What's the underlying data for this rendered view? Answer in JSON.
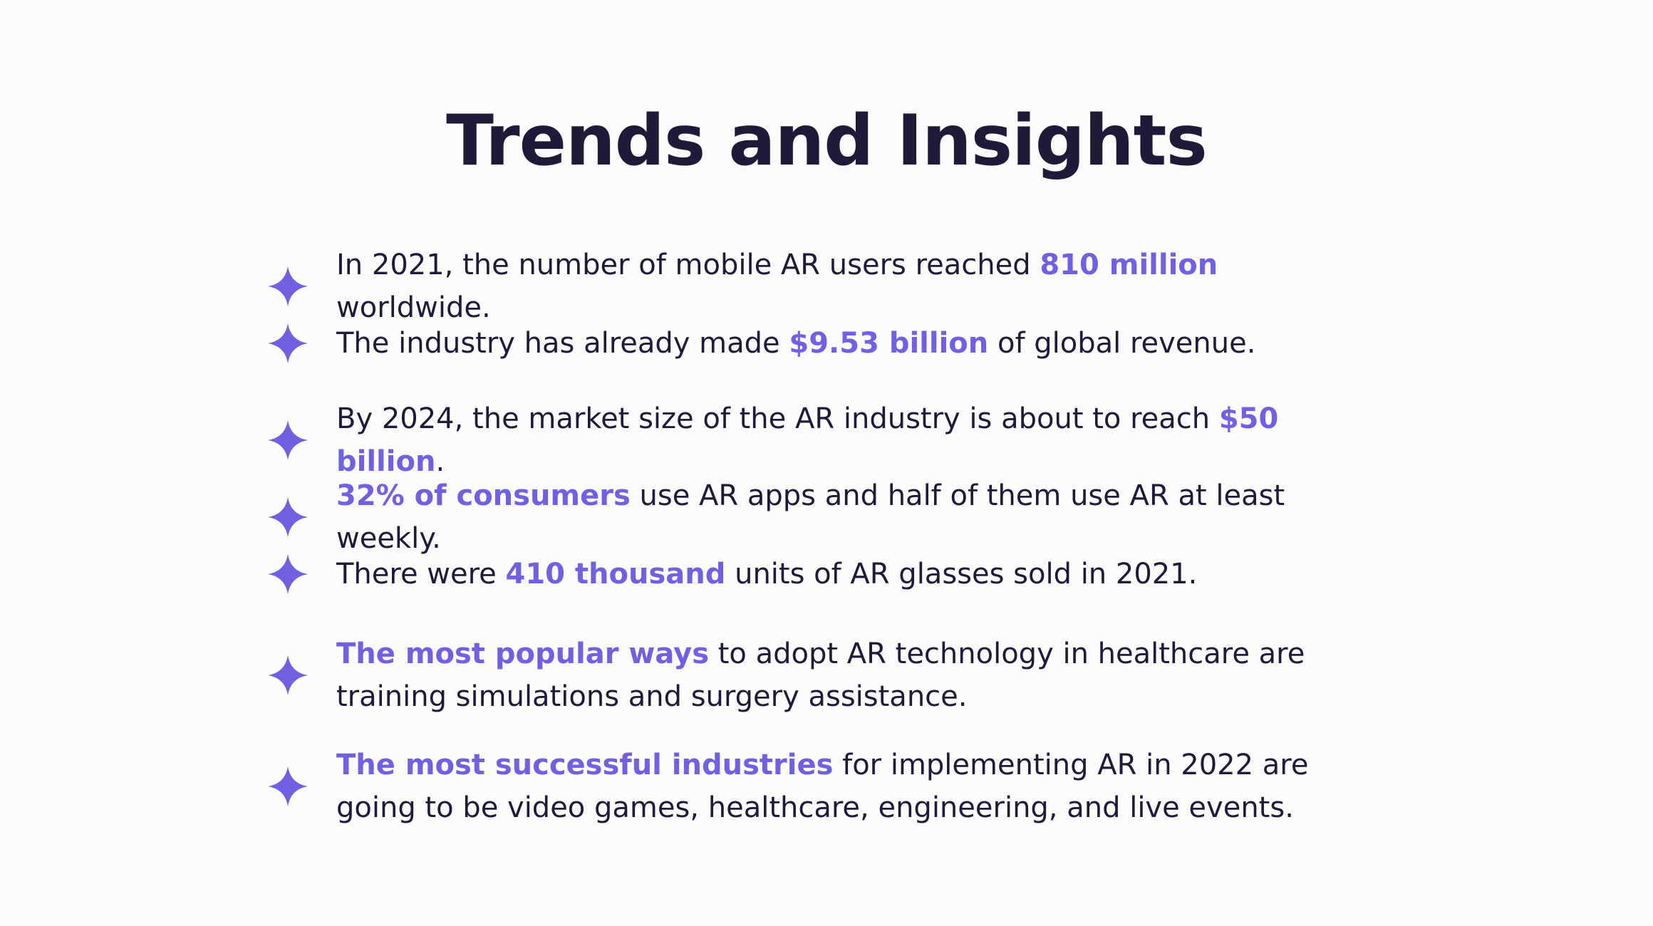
{
  "title": "Trends and Insights",
  "accent_color": "#7060e2",
  "text_color": "#1e1b39",
  "bullet_icon": "four-point-star-icon",
  "items": [
    {
      "a": "In 2021, the number of mobile AR users reached ",
      "b": "810 million",
      "c": " worldwide."
    },
    {
      "a": "The industry has already made ",
      "b": "$9.53 billion",
      "c": " of global revenue."
    },
    {
      "a": "By 2024, the market size of the AR industry is about to reach ",
      "b": "$50 billion",
      "c": "."
    },
    {
      "a": "",
      "b": "32% of consumers",
      "c": " use AR apps and half of them use AR at least weekly."
    },
    {
      "a": "There were ",
      "b": "410 thousand",
      "c": " units of AR glasses sold in 2021."
    },
    {
      "a": "",
      "b": "The most popular ways",
      "c": " to adopt AR technology in healthcare are training simulations and surgery assistance."
    },
    {
      "a": "",
      "b": "The most successful industries",
      "c": " for implementing AR in 2022 are going to be video games, healthcare, engineering, and live events."
    }
  ]
}
